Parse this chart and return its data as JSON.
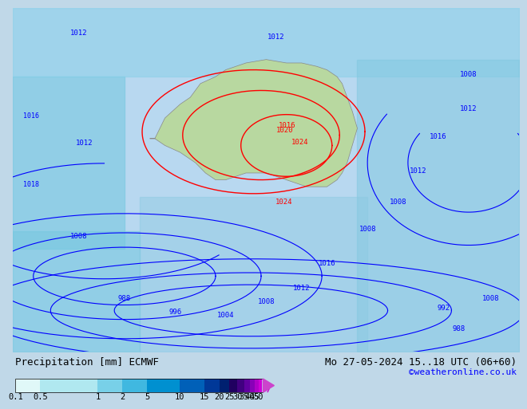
{
  "title_left": "Precipitation [mm] ECMWF",
  "title_right": "Mo 27-05-2024 15..18 UTC (06+60)",
  "credit": "©weatheronline.co.uk",
  "colorbar_values": [
    0.1,
    0.5,
    1,
    2,
    5,
    10,
    15,
    20,
    25,
    30,
    35,
    40,
    45,
    50
  ],
  "colorbar_colors": [
    "#e0f8f8",
    "#b0e8f0",
    "#78d0e8",
    "#40b8e0",
    "#0090d0",
    "#0060b8",
    "#003898",
    "#002070",
    "#200060",
    "#400080",
    "#6000a0",
    "#8800b8",
    "#b000c8",
    "#d000d8",
    "#e800e0"
  ],
  "bg_color": "#c8e8f8",
  "land_color": "#b8d8a0",
  "map_bg": "#c8e8f8",
  "title_fontsize": 9,
  "credit_fontsize": 8,
  "label_fontsize": 8,
  "colorbar_label_fontsize": 7.5
}
